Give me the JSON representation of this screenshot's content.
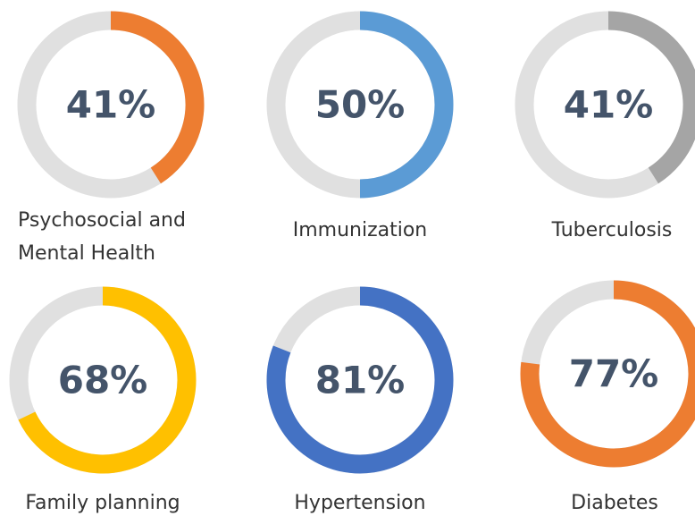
{
  "chart_data": [
    {
      "type": "donut",
      "title": "Psychosocial and Mental Health",
      "values": [
        41
      ],
      "value_labels": [
        "41%"
      ],
      "color": "#ed7d31"
    },
    {
      "type": "donut",
      "title": "Immunization",
      "values": [
        50
      ],
      "value_labels": [
        "50%"
      ],
      "color": "#5b9bd5"
    },
    {
      "type": "donut",
      "title": "Tuberculosis",
      "values": [
        41
      ],
      "value_labels": [
        "41%"
      ],
      "color": "#a5a5a5"
    },
    {
      "type": "donut",
      "title": "Family planning",
      "values": [
        68
      ],
      "value_labels": [
        "68%"
      ],
      "color": "#ffc000"
    },
    {
      "type": "donut",
      "title": "Hypertension",
      "values": [
        81
      ],
      "value_labels": [
        "81%"
      ],
      "color": "#4472c4"
    },
    {
      "type": "donut",
      "title": "Diabetes",
      "values": [
        77
      ],
      "value_labels": [
        "77%"
      ],
      "color": "#ed7d31"
    }
  ]
}
